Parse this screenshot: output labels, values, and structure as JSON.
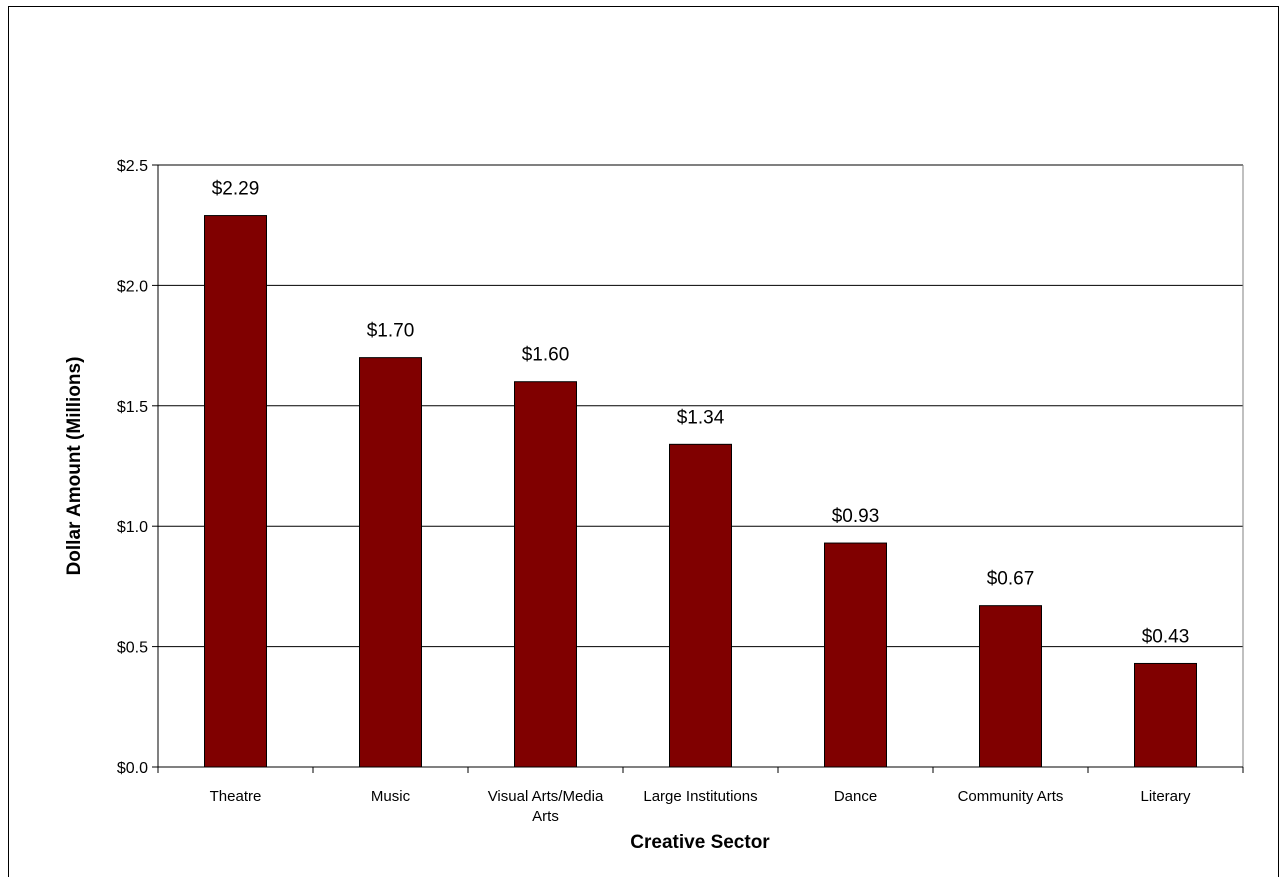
{
  "chart_data": {
    "type": "bar",
    "title": "",
    "xlabel": "Creative Sector",
    "ylabel": "Dollar Amount (Millions)",
    "categories": [
      [
        "Theatre"
      ],
      [
        "Music"
      ],
      [
        "Visual Arts/Media",
        "Arts"
      ],
      [
        "Large Institutions"
      ],
      [
        "Dance"
      ],
      [
        "Community Arts"
      ],
      [
        "Literary"
      ]
    ],
    "values": [
      2.29,
      1.7,
      1.6,
      1.34,
      0.93,
      0.67,
      0.43
    ],
    "data_labels": [
      "$2.29",
      "$1.70",
      "$1.60",
      "$1.34",
      "$0.93",
      "$0.67",
      "$0.43"
    ],
    "ylim": [
      0,
      2.5
    ],
    "yticks": [
      0,
      0.5,
      1.0,
      1.5,
      2.0,
      2.5
    ],
    "ytick_labels": [
      "$0.0",
      "$0.5",
      "$1.0",
      "$1.5",
      "$2.0",
      "$2.5"
    ],
    "grid": true,
    "legend": "none",
    "bar_color": "#800000"
  }
}
